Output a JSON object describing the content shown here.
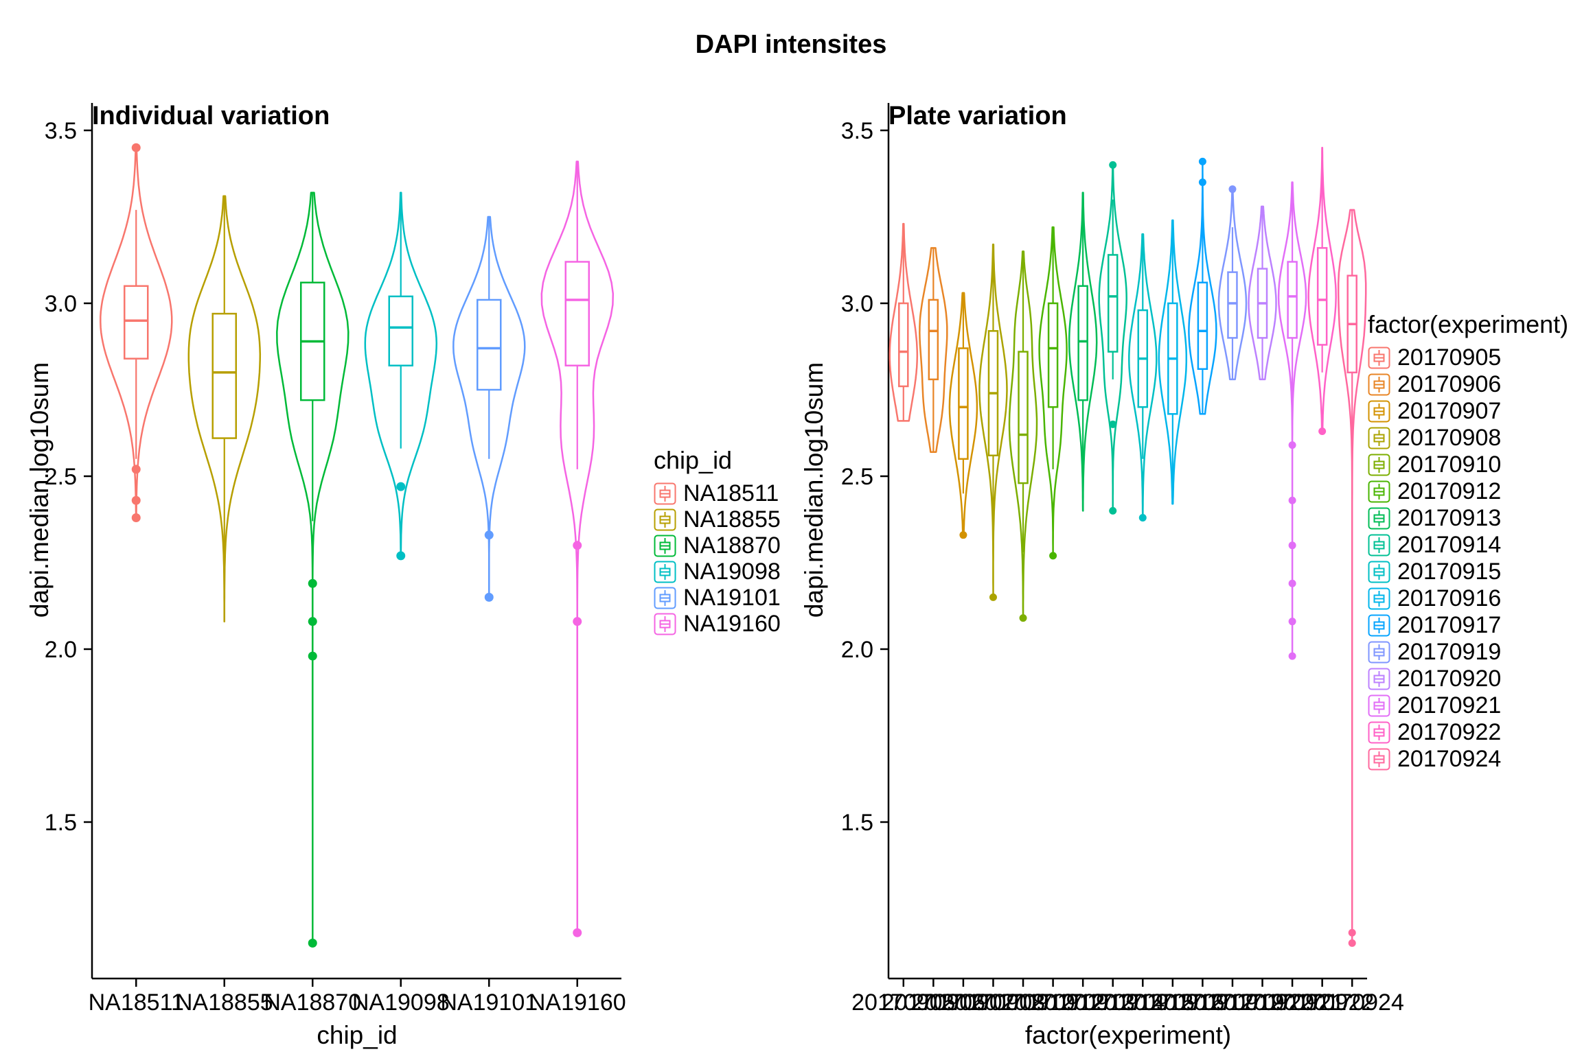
{
  "title": "DAPI intensites",
  "chart_data": [
    {
      "type": "violin",
      "title": "Individual variation",
      "xlabel": "chip_id",
      "ylabel": "dapi.median.log10sum",
      "legend_title": "chip_id",
      "legend_position": "right",
      "ylim": [
        1.05,
        3.58
      ],
      "yticks": [
        1.5,
        2.0,
        2.5,
        3.0,
        3.5
      ],
      "grid": false,
      "series": [
        {
          "label": "NA18511",
          "color": "#F8766D",
          "min": 2.38,
          "max": 3.45,
          "density": [
            [
              2.95,
              0.17,
              1.0
            ]
          ],
          "box": {
            "q1": 2.84,
            "median": 2.95,
            "q3": 3.05
          },
          "whiskers": [
            2.55,
            3.27
          ],
          "points": [
            3.45,
            2.52,
            2.43,
            2.38
          ]
        },
        {
          "label": "NA18855",
          "color": "#B79F00",
          "min": 2.08,
          "max": 3.31,
          "density": [
            [
              2.7,
              0.16,
              0.9
            ],
            [
              2.95,
              0.14,
              0.85
            ]
          ],
          "box": {
            "q1": 2.61,
            "median": 2.8,
            "q3": 2.97
          },
          "whiskers": [
            2.08,
            3.31
          ],
          "points": []
        },
        {
          "label": "NA18870",
          "color": "#00BA38",
          "min": 1.15,
          "max": 3.32,
          "density": [
            [
              2.92,
              0.16,
              1.0
            ],
            [
              2.62,
              0.12,
              0.45
            ]
          ],
          "box": {
            "q1": 2.72,
            "median": 2.89,
            "q3": 3.06
          },
          "whiskers": [
            2.37,
            3.32
          ],
          "points": [
            2.19,
            2.08,
            1.98,
            1.15
          ]
        },
        {
          "label": "NA19098",
          "color": "#00BFC4",
          "min": 2.27,
          "max": 3.32,
          "density": [
            [
              2.9,
              0.14,
              1.0
            ],
            [
              2.64,
              0.11,
              0.5
            ]
          ],
          "box": {
            "q1": 2.82,
            "median": 2.93,
            "q3": 3.02
          },
          "whiskers": [
            2.58,
            3.32
          ],
          "points": [
            2.47,
            2.27
          ]
        },
        {
          "label": "NA19101",
          "color": "#619CFF",
          "min": 2.15,
          "max": 3.25,
          "density": [
            [
              2.88,
              0.14,
              1.0
            ],
            [
              2.6,
              0.1,
              0.35
            ]
          ],
          "box": {
            "q1": 2.75,
            "median": 2.87,
            "q3": 3.01
          },
          "whiskers": [
            2.55,
            3.25
          ],
          "points": [
            2.33,
            2.15
          ]
        },
        {
          "label": "NA19160",
          "color": "#F564E3",
          "min": 1.18,
          "max": 3.41,
          "density": [
            [
              3.02,
              0.14,
              1.0
            ],
            [
              2.62,
              0.14,
              0.45
            ]
          ],
          "box": {
            "q1": 2.82,
            "median": 3.01,
            "q3": 3.12
          },
          "whiskers": [
            2.52,
            3.41
          ],
          "points": [
            2.3,
            2.08,
            1.18
          ]
        }
      ]
    },
    {
      "type": "violin",
      "title": "Plate variation",
      "xlabel": "factor(experiment)",
      "ylabel": "dapi.median.log10sum",
      "legend_title": "factor(experiment)",
      "legend_position": "right",
      "ylim": [
        1.05,
        3.58
      ],
      "yticks": [
        1.5,
        2.0,
        2.5,
        3.0,
        3.5
      ],
      "grid": false,
      "series": [
        {
          "label": "20170905",
          "color": "#F8766D",
          "min": 2.66,
          "max": 3.23,
          "density": [
            [
              2.85,
              0.14,
              1.0
            ]
          ],
          "box": {
            "q1": 2.76,
            "median": 2.86,
            "q3": 3.0
          },
          "whiskers": [
            2.66,
            3.23
          ],
          "points": []
        },
        {
          "label": "20170906",
          "color": "#E88526",
          "min": 2.57,
          "max": 3.16,
          "density": [
            [
              2.93,
              0.12,
              1.0
            ],
            [
              2.7,
              0.09,
              0.55
            ]
          ],
          "box": {
            "q1": 2.78,
            "median": 2.92,
            "q3": 3.01
          },
          "whiskers": [
            2.57,
            3.16
          ],
          "points": []
        },
        {
          "label": "20170907",
          "color": "#D39200",
          "min": 2.33,
          "max": 3.03,
          "density": [
            [
              2.7,
              0.14,
              1.0
            ]
          ],
          "box": {
            "q1": 2.55,
            "median": 2.7,
            "q3": 2.87
          },
          "whiskers": [
            2.45,
            3.03
          ],
          "points": [
            2.33
          ]
        },
        {
          "label": "20170908",
          "color": "#ABA300",
          "min": 2.15,
          "max": 3.17,
          "density": [
            [
              2.75,
              0.15,
              1.0
            ]
          ],
          "box": {
            "q1": 2.56,
            "median": 2.74,
            "q3": 2.92
          },
          "whiskers": [
            2.36,
            3.17
          ],
          "points": [
            2.15
          ]
        },
        {
          "label": "20170910",
          "color": "#7CAE00",
          "min": 2.09,
          "max": 3.15,
          "density": [
            [
              2.65,
              0.16,
              1.0
            ],
            [
              2.95,
              0.09,
              0.4
            ]
          ],
          "box": {
            "q1": 2.48,
            "median": 2.62,
            "q3": 2.86
          },
          "whiskers": [
            2.28,
            3.15
          ],
          "points": [
            2.09
          ]
        },
        {
          "label": "20170912",
          "color": "#49B500",
          "min": 2.27,
          "max": 3.22,
          "density": [
            [
              2.87,
              0.14,
              1.0
            ],
            [
              2.6,
              0.09,
              0.4
            ]
          ],
          "box": {
            "q1": 2.7,
            "median": 2.87,
            "q3": 3.0
          },
          "whiskers": [
            2.52,
            3.22
          ],
          "points": [
            2.27
          ]
        },
        {
          "label": "20170913",
          "color": "#00BC56",
          "min": 2.4,
          "max": 3.32,
          "density": [
            [
              2.89,
              0.15,
              1.0
            ]
          ],
          "box": {
            "q1": 2.72,
            "median": 2.89,
            "q3": 3.05
          },
          "whiskers": [
            2.4,
            3.32
          ],
          "points": []
        },
        {
          "label": "20170914",
          "color": "#00C094",
          "min": 2.4,
          "max": 3.4,
          "density": [
            [
              3.02,
              0.13,
              1.0
            ],
            [
              2.76,
              0.09,
              0.45
            ]
          ],
          "box": {
            "q1": 2.86,
            "median": 3.02,
            "q3": 3.14
          },
          "whiskers": [
            2.78,
            3.3
          ],
          "points": [
            3.4,
            2.65,
            2.4
          ]
        },
        {
          "label": "20170915",
          "color": "#00BFC4",
          "min": 2.38,
          "max": 3.2,
          "density": [
            [
              2.84,
              0.14,
              1.0
            ]
          ],
          "box": {
            "q1": 2.7,
            "median": 2.84,
            "q3": 2.98
          },
          "whiskers": [
            2.55,
            3.2
          ],
          "points": [
            2.38
          ]
        },
        {
          "label": "20170916",
          "color": "#00B6EB",
          "min": 2.42,
          "max": 3.24,
          "density": [
            [
              2.84,
              0.15,
              1.0
            ]
          ],
          "box": {
            "q1": 2.68,
            "median": 2.84,
            "q3": 3.0
          },
          "whiskers": [
            2.42,
            3.24
          ],
          "points": []
        },
        {
          "label": "20170917",
          "color": "#06A4FF",
          "min": 2.68,
          "max": 3.41,
          "density": [
            [
              2.92,
              0.13,
              1.0
            ]
          ],
          "box": {
            "q1": 2.81,
            "median": 2.92,
            "q3": 3.06
          },
          "whiskers": [
            2.68,
            3.25
          ],
          "points": [
            3.41,
            3.35
          ]
        },
        {
          "label": "20170919",
          "color": "#7F96FF",
          "min": 2.78,
          "max": 3.33,
          "density": [
            [
              3.0,
              0.12,
              1.0
            ]
          ],
          "box": {
            "q1": 2.9,
            "median": 3.0,
            "q3": 3.09
          },
          "whiskers": [
            2.78,
            3.22
          ],
          "points": [
            3.33
          ]
        },
        {
          "label": "20170920",
          "color": "#BC81FF",
          "min": 2.78,
          "max": 3.28,
          "density": [
            [
              3.0,
              0.12,
              1.0
            ]
          ],
          "box": {
            "q1": 2.9,
            "median": 3.0,
            "q3": 3.1
          },
          "whiskers": [
            2.78,
            3.28
          ],
          "points": []
        },
        {
          "label": "20170921",
          "color": "#E26EF7",
          "min": 1.98,
          "max": 3.35,
          "density": [
            [
              3.02,
              0.12,
              1.0
            ]
          ],
          "box": {
            "q1": 2.9,
            "median": 3.02,
            "q3": 3.12
          },
          "whiskers": [
            2.72,
            3.35
          ],
          "points": [
            2.59,
            2.43,
            2.3,
            2.19,
            2.08,
            1.98
          ]
        },
        {
          "label": "20170922",
          "color": "#FF61C7",
          "min": 2.63,
          "max": 3.45,
          "density": [
            [
              3.02,
              0.14,
              1.0
            ]
          ],
          "box": {
            "q1": 2.88,
            "median": 3.01,
            "q3": 3.16
          },
          "whiskers": [
            2.8,
            3.4
          ],
          "points": [
            2.63
          ]
        },
        {
          "label": "20170924",
          "color": "#FF689E",
          "min": 1.15,
          "max": 3.27,
          "density": [
            [
              2.95,
              0.14,
              1.0
            ],
            [
              3.12,
              0.08,
              0.5
            ]
          ],
          "box": {
            "q1": 2.8,
            "median": 2.94,
            "q3": 3.08
          },
          "whiskers": [
            2.6,
            3.27
          ],
          "points": [
            1.18,
            1.15
          ]
        }
      ]
    }
  ]
}
